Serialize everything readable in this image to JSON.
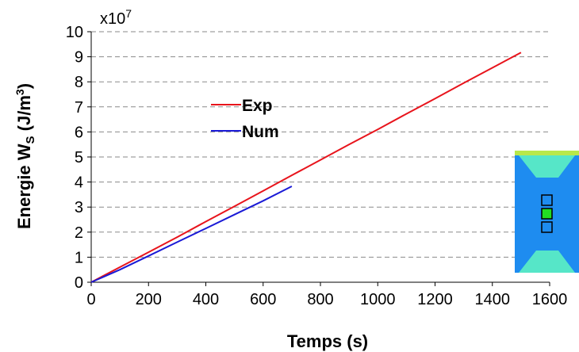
{
  "chart_data": {
    "type": "line",
    "x_label": "Temps (s)",
    "y_label_main": "Energie W",
    "y_label_sub": "S",
    "y_label_unit_prefix": " (J/m",
    "y_label_unit_sup": "3",
    "y_label_unit_suffix": ")",
    "y_exponent_base": "x10",
    "y_exponent_power": "7",
    "xlim": [
      0,
      1600
    ],
    "ylim": [
      0,
      10
    ],
    "x_ticks": [
      "0",
      "200",
      "400",
      "600",
      "800",
      "1000",
      "1200",
      "1400",
      "1600"
    ],
    "y_ticks": [
      "0",
      "1",
      "2",
      "3",
      "4",
      "5",
      "6",
      "7",
      "8",
      "9",
      "10"
    ],
    "grid": "horizontal dashed",
    "legend_position": "upper-left",
    "series": [
      {
        "name": "Exp",
        "color": "#e8141c",
        "x": [
          0,
          100,
          200,
          300,
          400,
          500,
          600,
          700,
          800,
          900,
          1000,
          1100,
          1200,
          1300,
          1400,
          1500
        ],
        "y": [
          0,
          0.6,
          1.2,
          1.8,
          2.42,
          3.03,
          3.65,
          4.27,
          4.88,
          5.5,
          6.1,
          6.72,
          7.33,
          7.95,
          8.56,
          9.17
        ]
      },
      {
        "name": "Num",
        "color": "#1a1ad6",
        "x": [
          0,
          100,
          200,
          300,
          400,
          500,
          600,
          700
        ],
        "y": [
          0,
          0.5,
          1.05,
          1.6,
          2.15,
          2.7,
          3.25,
          3.83
        ]
      }
    ]
  },
  "inset": {
    "icon": "specimen-mesh-thumbnail",
    "colors": {
      "body": "#1e8cf0",
      "wedge": "#56e6c8",
      "top_band": "#b8e84a",
      "active_marker": "#22dd22"
    }
  }
}
